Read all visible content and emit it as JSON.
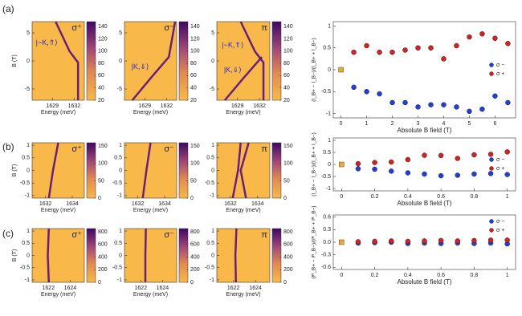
{
  "panel_labels": [
    "(a)",
    "(b)",
    "(c)"
  ],
  "chart_data": [
    {
      "type": "heatmap",
      "label": "σ⁺",
      "annotations": [
        "|−K,⇑⟩"
      ],
      "xlabel": "Energy (meV)",
      "ylabel": "B (T)",
      "xlim": [
        1626.2,
        1633.4
      ],
      "xticks": [
        1629,
        1632
      ],
      "ylim": [
        -7,
        7
      ],
      "yticks": [
        5,
        0,
        -5
      ],
      "colorbar": {
        "lim": [
          20,
          148
        ],
        "ticks": [
          20,
          40,
          60,
          80,
          100,
          120,
          140
        ]
      }
    },
    {
      "type": "heatmap",
      "label": "σ⁻",
      "annotations": [
        "|K,⇓⟩"
      ],
      "xlabel": "Energy (meV)",
      "xlim": [
        1626.2,
        1633.4
      ],
      "xticks": [
        1629,
        1632
      ],
      "ylim": [
        -7,
        7
      ],
      "yticks": [
        5,
        0,
        -5
      ],
      "colorbar": {
        "lim": [
          20,
          148
        ],
        "ticks": [
          20,
          40,
          60,
          80,
          100,
          120,
          140
        ]
      }
    },
    {
      "type": "heatmap",
      "label": "π",
      "annotations": [
        "|−K,⇑⟩",
        "|K,⇓⟩"
      ],
      "xlabel": "Energy (meV)",
      "xlim": [
        1626.2,
        1633.4
      ],
      "xticks": [
        1629,
        1632
      ],
      "ylim": [
        -7,
        7
      ],
      "yticks": [
        5,
        0,
        -5
      ],
      "colorbar": {
        "lim": [
          20,
          148
        ],
        "ticks": [
          20,
          40,
          60,
          80,
          100,
          120,
          140
        ]
      }
    },
    {
      "type": "scatter",
      "xlabel": "Absolute B field (T)",
      "ylabel": "(I_B+ − I_B−)/(I_B+ + I_B−)",
      "xlim": [
        -0.3,
        6.8
      ],
      "xticks": [
        0,
        1,
        2,
        3,
        4,
        5,
        6
      ],
      "ylim": [
        -1.1,
        1.1
      ],
      "yticks": [
        -1,
        -0.5,
        0,
        0.5,
        1
      ],
      "legend": "right",
      "x": [
        0.5,
        1,
        1.5,
        2,
        2.5,
        3,
        3.5,
        4,
        4.5,
        5,
        5.5,
        6,
        6.5
      ],
      "series": [
        {
          "name": "σ −",
          "color": "#1f3fd6",
          "values": [
            -0.4,
            -0.5,
            -0.55,
            -0.75,
            -0.75,
            -0.85,
            -0.8,
            -0.8,
            -0.85,
            -0.95,
            -0.9,
            -0.6,
            -0.75
          ]
        },
        {
          "name": "σ +",
          "color": "#d62020",
          "values": [
            0.4,
            0.55,
            0.4,
            0.4,
            0.45,
            0.5,
            0.5,
            0.25,
            0.55,
            0.75,
            0.82,
            0.72,
            0.6
          ]
        }
      ],
      "reference_point": {
        "x": 0,
        "y": 0,
        "color": "#e8a93a"
      }
    },
    {
      "type": "heatmap",
      "label": "σ⁺",
      "xlabel": "Energy (meV)",
      "ylabel": "B (T)",
      "xlim": [
        1631,
        1634.9
      ],
      "xticks": [
        1632,
        1634
      ],
      "ylim": [
        -1.1,
        1.1
      ],
      "yticks": [
        1,
        0.5,
        0,
        -0.5,
        -1
      ],
      "colorbar": {
        "lim": [
          0,
          160
        ],
        "ticks": [
          0,
          50,
          100,
          150
        ]
      }
    },
    {
      "type": "heatmap",
      "label": "σ⁻",
      "xlabel": "Energy (meV)",
      "xlim": [
        1631,
        1634.9
      ],
      "xticks": [
        1632,
        1634
      ],
      "ylim": [
        -1.1,
        1.1
      ],
      "yticks": [
        1,
        0.5,
        0,
        -0.5,
        -1
      ],
      "colorbar": {
        "lim": [
          0,
          160
        ],
        "ticks": [
          0,
          50,
          100,
          150
        ]
      }
    },
    {
      "type": "heatmap",
      "label": "π",
      "xlabel": "Energy (meV)",
      "xlim": [
        1631,
        1634.9
      ],
      "xticks": [
        1632,
        1634
      ],
      "ylim": [
        -1.1,
        1.1
      ],
      "yticks": [
        1,
        0.5,
        0,
        -0.5,
        -1
      ],
      "colorbar": {
        "lim": [
          0,
          160
        ],
        "ticks": [
          0,
          50,
          100,
          150
        ]
      }
    },
    {
      "type": "scatter",
      "xlabel": "Absolute B field (T)",
      "ylabel": "(I_B+ − I_B−)/(I_B+ + I_B−)",
      "xlim": [
        -0.05,
        1.05
      ],
      "xticks": [
        0,
        0.2,
        0.4,
        0.6,
        0.8,
        1
      ],
      "ylim": [
        -1.1,
        1.1
      ],
      "yticks": [
        -1,
        -0.5,
        0,
        0.5,
        1
      ],
      "legend": "right",
      "x": [
        0.1,
        0.2,
        0.3,
        0.4,
        0.5,
        0.6,
        0.7,
        0.8,
        0.9,
        1
      ],
      "series": [
        {
          "name": "σ −",
          "color": "#1f3fd6",
          "values": [
            -0.18,
            -0.2,
            -0.28,
            -0.35,
            -0.4,
            -0.47,
            -0.45,
            -0.4,
            -0.38,
            -0.42
          ]
        },
        {
          "name": "σ +",
          "color": "#d62020",
          "values": [
            0.03,
            0.08,
            0.1,
            0.2,
            0.38,
            0.37,
            0.25,
            0.4,
            0.42,
            0.52
          ]
        }
      ],
      "reference_point": {
        "x": 0,
        "y": 0,
        "color": "#e8a93a"
      }
    },
    {
      "type": "heatmap",
      "label": "σ⁺",
      "xlabel": "Energy (meV)",
      "ylabel": "B (T)",
      "xlim": [
        1620.5,
        1625.3
      ],
      "xticks": [
        1622,
        1624
      ],
      "ylim": [
        -1.1,
        1.1
      ],
      "yticks": [
        1,
        0.5,
        0,
        -0.5,
        -1
      ],
      "colorbar": {
        "lim": [
          0,
          850
        ],
        "ticks": [
          0,
          200,
          400,
          600,
          800
        ]
      }
    },
    {
      "type": "heatmap",
      "label": "σ⁻",
      "xlabel": "Energy (meV)",
      "xlim": [
        1620.5,
        1625.3
      ],
      "xticks": [
        1622,
        1624
      ],
      "ylim": [
        -1.1,
        1.1
      ],
      "yticks": [
        1,
        0.5,
        0,
        -0.5,
        -1
      ],
      "colorbar": {
        "lim": [
          0,
          850
        ],
        "ticks": [
          0,
          200,
          400,
          600,
          800
        ]
      }
    },
    {
      "type": "heatmap",
      "label": "π",
      "xlabel": "Energy (meV)",
      "xlim": [
        1620.5,
        1625.3
      ],
      "xticks": [
        1622,
        1624
      ],
      "ylim": [
        -1.1,
        1.1
      ],
      "yticks": [
        1,
        0.5,
        0,
        -0.5,
        -1
      ],
      "colorbar": {
        "lim": [
          0,
          850
        ],
        "ticks": [
          0,
          200,
          400,
          600,
          800
        ]
      }
    },
    {
      "type": "scatter",
      "xlabel": "Absolute B field (T)",
      "ylabel": "(Iᴿ_B+ − Iᴿ_B−)/(Iᴿ_B+ + Iᴿ_B−)",
      "xlim": [
        -0.05,
        1.05
      ],
      "xticks": [
        0,
        0.2,
        0.4,
        0.6,
        0.8,
        1
      ],
      "ylim": [
        -0.65,
        0.65
      ],
      "yticks": [
        -0.6,
        -0.3,
        {
          "value": 0,
          "label": "0.0"
        },
        0.3,
        0.6
      ],
      "legend": "upper right",
      "x": [
        0.1,
        0.2,
        0.3,
        0.4,
        0.5,
        0.6,
        0.7,
        0.8,
        0.9,
        1
      ],
      "series": [
        {
          "name": "σ −",
          "color": "#1f3fd6",
          "values": [
            -0.02,
            -0.01,
            0.0,
            -0.03,
            -0.02,
            -0.03,
            -0.02,
            -0.03,
            -0.02,
            -0.04
          ]
        },
        {
          "name": "σ +",
          "color": "#d62020",
          "values": [
            0.01,
            0.02,
            0.03,
            0.02,
            0.03,
            0.04,
            0.03,
            0.04,
            0.05,
            0.05
          ]
        }
      ],
      "reference_point": {
        "x": 0,
        "y": 0,
        "color": "#e8a93a"
      }
    }
  ]
}
